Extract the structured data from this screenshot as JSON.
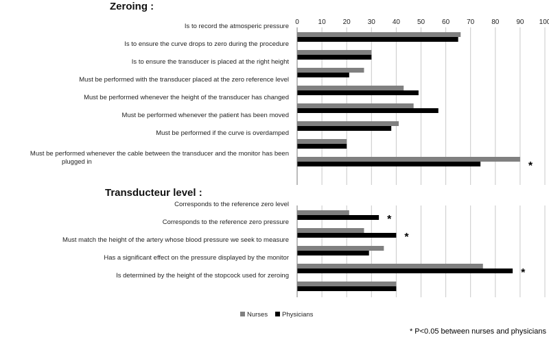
{
  "chart_data": [
    {
      "type": "bar",
      "orientation": "horizontal",
      "title": "Zeroing :",
      "xlim": [
        0,
        100
      ],
      "xticks": [
        0,
        10,
        20,
        30,
        40,
        50,
        60,
        70,
        80,
        90,
        100
      ],
      "categories": [
        "Is to record the atmosperic pressure",
        "Is to ensure the curve drops to zero during the procedure",
        "Is to ensure the transducer is placed at the right height",
        "Must be performed with the transducer placed at the zero reference level",
        "Must be performed whenever the height of the transducer has changed",
        "Must be performed whenever the patient has been moved",
        "Must be performed if  the curve is overdamped",
        "Must be performed whenever the cable between the transducer and the monitor has been plugged in"
      ],
      "category_lines": [
        [
          "Is to record the atmosperic pressure"
        ],
        [
          "Is to ensure the curve drops to zero during the procedure"
        ],
        [
          "Is to ensure the transducer is placed at the right height"
        ],
        [
          "Must be performed with the transducer placed at the zero reference level"
        ],
        [
          "Must be performed whenever the height of the transducer has changed"
        ],
        [
          "Must be performed whenever the patient has been moved"
        ],
        [
          "Must be performed if  the curve is overdamped"
        ],
        [
          "Must be performed whenever the cable between the transducer and the monitor has been",
          "plugged in"
        ]
      ],
      "series": [
        {
          "name": "Nurses",
          "values": [
            66,
            30,
            27,
            43,
            47,
            41,
            20,
            90
          ]
        },
        {
          "name": "Physicians",
          "values": [
            65,
            30,
            21,
            49,
            57,
            38,
            20,
            74
          ]
        }
      ],
      "significant": [
        false,
        false,
        false,
        false,
        false,
        false,
        false,
        true
      ]
    },
    {
      "type": "bar",
      "orientation": "horizontal",
      "title": "Transducteur level :",
      "xlim": [
        0,
        100
      ],
      "categories": [
        "Corresponds to the reference zero level",
        "Corresponds to the reference zero pressure",
        "Must match the height of the artery whose blood pressure we seek to measure",
        "Has a significant effect on the pressure displayed by the monitor",
        "Is determined by the height of the stopcock used for zeroing"
      ],
      "category_lines": [
        [
          "Corresponds to the reference zero level"
        ],
        [
          "Corresponds to the reference zero pressure"
        ],
        [
          "Must match the height of the artery whose blood pressure we seek to measure"
        ],
        [
          "Has a significant effect on the pressure displayed by the monitor"
        ],
        [
          "Is determined by the height of the stopcock used for zeroing"
        ]
      ],
      "series": [
        {
          "name": "Nurses",
          "values": [
            21,
            27,
            35,
            75,
            40
          ]
        },
        {
          "name": "Physicians",
          "values": [
            33,
            40,
            29,
            87,
            40
          ]
        }
      ],
      "significant": [
        true,
        true,
        false,
        true,
        false
      ]
    }
  ],
  "legend": {
    "placement": "bottom",
    "items": [
      {
        "label": "Nurses",
        "color": "#808080"
      },
      {
        "label": "Physicians",
        "color": "#000000"
      }
    ]
  },
  "significance_marker": "*",
  "footnote": "* P<0.05 between nurses and physicians",
  "colors": {
    "nurses": "#808080",
    "physicians": "#000000",
    "grid": "#c8c8c8"
  }
}
